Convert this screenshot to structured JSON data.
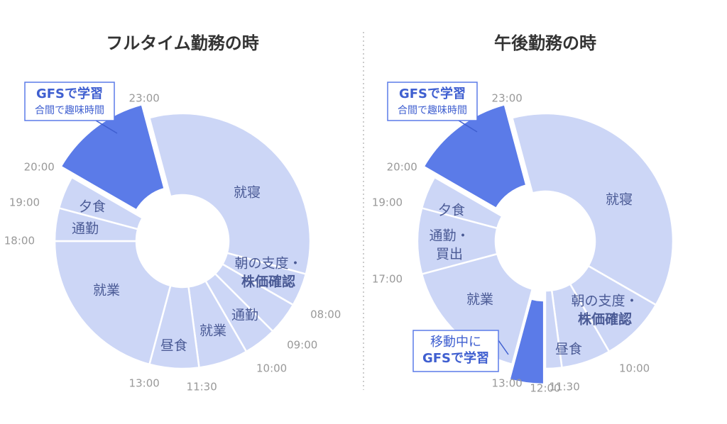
{
  "chart_data": [
    {
      "type": "donut",
      "title": "フルタイム勤務の時",
      "categories": [
        [
          "就寝"
        ],
        [
          "朝の支度・",
          "株価確認"
        ],
        null,
        [
          "通勤"
        ],
        [
          "就業"
        ],
        [
          "昼食"
        ],
        [
          "就業"
        ],
        [
          "通勤"
        ],
        [
          "夕食"
        ],
        [
          "GFSで学習",
          "合間で趣味時間"
        ]
      ],
      "values": [
        8,
        1,
        1,
        1,
        1.5,
        1.5,
        5,
        1,
        1,
        3
      ],
      "colors": [
        "#ccd6f6",
        "#ccd6f6",
        "#ccd6f6",
        "#ccd6f6",
        "#ccd6f6",
        "#ccd6f6",
        "#ccd6f6",
        "#ccd6f6",
        "#ccd6f6",
        "#5b7be8"
      ],
      "start": 23,
      "ticks": [
        {
          "value": 23,
          "label": "23:00"
        },
        {
          "value": 8,
          "label": "08:00"
        },
        {
          "value": 9,
          "label": "09:00"
        },
        {
          "value": 10,
          "label": "10:00"
        },
        {
          "value": 11.5,
          "label": "11:30"
        },
        {
          "value": 13,
          "label": "13:00"
        },
        {
          "value": 18,
          "label": "18:00"
        },
        {
          "value": 19,
          "label": "19:00"
        },
        {
          "value": 20,
          "label": "20:00"
        }
      ]
    },
    {
      "type": "donut",
      "title": "午後勤務の時",
      "categories": [
        [
          "就寝"
        ],
        [
          "朝の支度・",
          "株価確認"
        ],
        [
          "昼食"
        ],
        null,
        [
          "移動中に",
          "GFSで学習"
        ],
        [
          "就業"
        ],
        [
          "通勤・",
          "買出"
        ],
        [
          "夕食"
        ],
        [
          "GFSで学習",
          "合間で趣味時間"
        ]
      ],
      "values": [
        9,
        2,
        1.5,
        0.5,
        1,
        4,
        2,
        1,
        3
      ],
      "colors": [
        "#ccd6f6",
        "#ccd6f6",
        "#ccd6f6",
        "#ccd6f6",
        "#5b7be8",
        "#ccd6f6",
        "#ccd6f6",
        "#ccd6f6",
        "#5b7be8"
      ],
      "start": 23,
      "ticks": [
        {
          "value": 23,
          "label": "23:00"
        },
        {
          "value": 10,
          "label": "10:00"
        },
        {
          "value": 11.5,
          "label": "11:30"
        },
        {
          "value": 12,
          "label": "12:00"
        },
        {
          "value": 13,
          "label": "13:00"
        },
        {
          "value": 17,
          "label": "17:00"
        },
        {
          "value": 19,
          "label": "19:00"
        },
        {
          "value": 20,
          "label": "20:00"
        }
      ]
    }
  ]
}
